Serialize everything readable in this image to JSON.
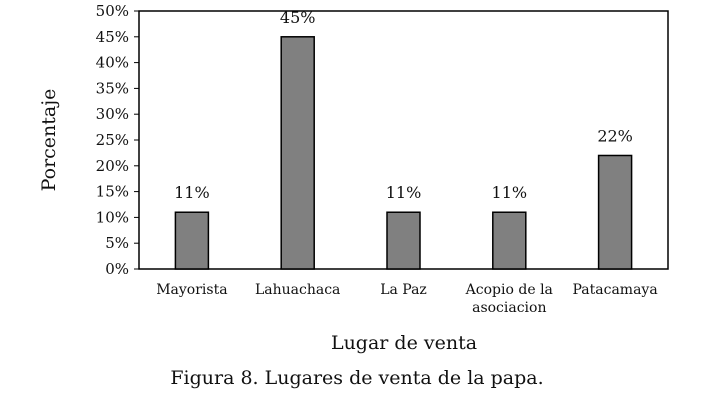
{
  "chart_data": {
    "type": "bar",
    "categories": [
      [
        "Mayorista"
      ],
      [
        "Lahuachaca"
      ],
      [
        "La Paz"
      ],
      [
        "Acopio de la",
        "asociacion"
      ],
      [
        "Patacamaya"
      ]
    ],
    "values": [
      11,
      45,
      11,
      11,
      22
    ],
    "data_labels": [
      "11%",
      "45%",
      "11%",
      "11%",
      "22%"
    ],
    "yticks": [
      0,
      5,
      10,
      15,
      20,
      25,
      30,
      35,
      40,
      45,
      50
    ],
    "ytick_suffix": "%",
    "ylim": [
      0,
      50
    ],
    "xlabel": "Lugar de venta",
    "ylabel": "Porcentaje",
    "grid": false,
    "legend": "none",
    "colors": {
      "bar_fill": "#808080",
      "bar_stroke": "#000000",
      "frame": "#000000"
    }
  },
  "caption": "Figura 8. Lugares de venta de la papa."
}
